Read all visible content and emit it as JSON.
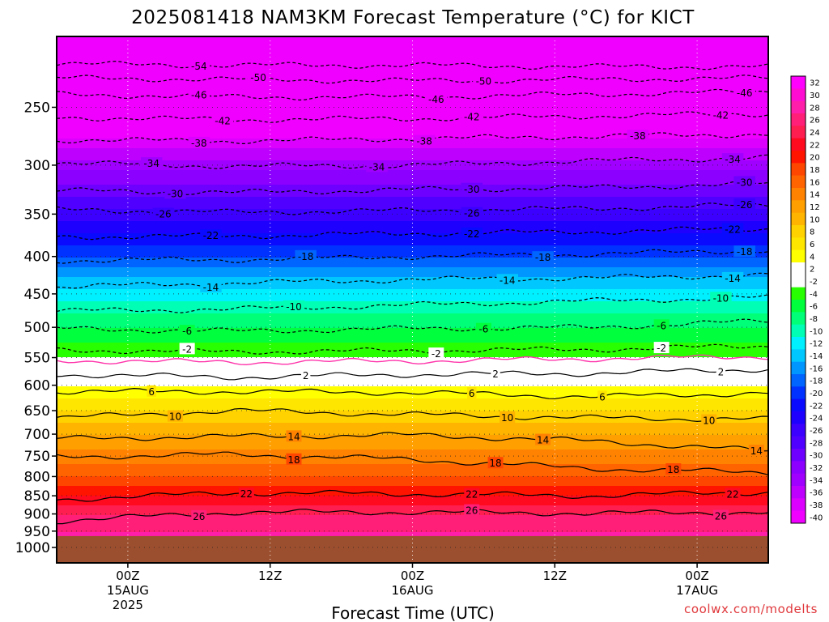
{
  "chart_data": {
    "type": "heatmap",
    "title": "2025081418 NAM3KM Forecast Temperature (°C) for KICT",
    "xlabel": "Forecast Time (UTC)",
    "ylabel": "",
    "watermark": "coolwx.com/modelts",
    "x_ticks": [
      {
        "hour": 6,
        "lines": [
          "00Z",
          "15AUG",
          "2025"
        ]
      },
      {
        "hour": 18,
        "lines": [
          "12Z"
        ]
      },
      {
        "hour": 30,
        "lines": [
          "00Z",
          "16AUG"
        ]
      },
      {
        "hour": 42,
        "lines": [
          "12Z"
        ]
      },
      {
        "hour": 54,
        "lines": [
          "00Z",
          "17AUG"
        ]
      }
    ],
    "xlim": [
      0,
      60
    ],
    "y_ticks": [
      250,
      300,
      350,
      400,
      450,
      500,
      550,
      600,
      650,
      700,
      750,
      800,
      850,
      900,
      950,
      1000
    ],
    "ylim_hPa": [
      1000,
      200
    ],
    "y_scale": "log-pressure",
    "ground_level_hPa": 965,
    "grid": "dotted",
    "colorbar": {
      "placement": "right",
      "levels": [
        "32",
        "30",
        "28",
        "26",
        "24",
        "22",
        "20",
        "18",
        "16",
        "14",
        "12",
        "10",
        "8",
        "6",
        "4",
        "2",
        "-2",
        "-4",
        "-6",
        "-8",
        "-10",
        "-12",
        "-14",
        "-16",
        "-18",
        "-20",
        "-22",
        "-24",
        "-26",
        "-28",
        "-30",
        "-32",
        "-34",
        "-36",
        "-38",
        "-40"
      ],
      "colors": [
        "#ff00ff",
        "#ff0cd2",
        "#ff1eaa",
        "#ff1e78",
        "#ff1e50",
        "#ff0a1e",
        "#ff1400",
        "#ff4600",
        "#ff6400",
        "#ff8200",
        "#ffa000",
        "#ffb400",
        "#ffd200",
        "#ffe600",
        "#ffff00",
        "#ffffff",
        "#ffffff",
        "#28ff00",
        "#00ff3c",
        "#00ff78",
        "#00ffb4",
        "#00f0ff",
        "#00c8ff",
        "#0096ff",
        "#0064ff",
        "#0032ff",
        "#0a0aff",
        "#1e00ff",
        "#3c00ff",
        "#5000ff",
        "#6e00ff",
        "#8c00ff",
        "#a000ff",
        "#be00ff",
        "#dc00ff",
        "#f000ff"
      ]
    },
    "temperature_profile": [
      {
        "p": 1000,
        "t": 30
      },
      {
        "p": 950,
        "t": 28
      },
      {
        "p": 900,
        "t": 26
      },
      {
        "p": 850,
        "t": 22
      },
      {
        "p": 800,
        "t": 18
      },
      {
        "p": 750,
        "t": 15
      },
      {
        "p": 700,
        "t": 12
      },
      {
        "p": 650,
        "t": 8
      },
      {
        "p": 600,
        "t": 4
      },
      {
        "p": 570,
        "t": 0
      },
      {
        "p": 550,
        "t": -2
      },
      {
        "p": 500,
        "t": -6
      },
      {
        "p": 450,
        "t": -11
      },
      {
        "p": 400,
        "t": -18
      },
      {
        "p": 350,
        "t": -25
      },
      {
        "p": 300,
        "t": -33
      },
      {
        "p": 250,
        "t": -44
      },
      {
        "p": 200,
        "t": -55
      }
    ],
    "contours": [
      {
        "level": -54,
        "dashed": true,
        "p": [
          218,
          219,
          219,
          220,
          220
        ],
        "labels": [
          12
        ]
      },
      {
        "level": -50,
        "dashed": true,
        "p": [
          228,
          229,
          230,
          229,
          228
        ],
        "labels": [
          17,
          36
        ]
      },
      {
        "level": -46,
        "dashed": true,
        "p": [
          240,
          242,
          242,
          240,
          238
        ],
        "labels": [
          12,
          32,
          58
        ]
      },
      {
        "level": -42,
        "dashed": true,
        "p": [
          258,
          260,
          259,
          257,
          255
        ],
        "labels": [
          14,
          35,
          56
        ]
      },
      {
        "level": -38,
        "dashed": true,
        "p": [
          277,
          278,
          276,
          274,
          272
        ],
        "labels": [
          12,
          31,
          49
        ]
      },
      {
        "level": -34,
        "dashed": true,
        "p": [
          298,
          301,
          300,
          296,
          293
        ],
        "labels": [
          8,
          27,
          57
        ]
      },
      {
        "level": -30,
        "dashed": true,
        "p": [
          325,
          327,
          324,
          322,
          318
        ],
        "labels": [
          10,
          35,
          58
        ]
      },
      {
        "level": -26,
        "dashed": true,
        "p": [
          345,
          348,
          346,
          344,
          340
        ],
        "labels": [
          9,
          35,
          58
        ]
      },
      {
        "level": -22,
        "dashed": true,
        "p": [
          376,
          375,
          372,
          370,
          366
        ],
        "labels": [
          13,
          35,
          57
        ]
      },
      {
        "level": -18,
        "dashed": true,
        "p": [
          405,
          404,
          400,
          397,
          392
        ],
        "labels": [
          21,
          41,
          58
        ]
      },
      {
        "level": -14,
        "dashed": true,
        "p": [
          440,
          435,
          430,
          428,
          424
        ],
        "labels": [
          13,
          38,
          57
        ]
      },
      {
        "level": -10,
        "dashed": true,
        "p": [
          475,
          472,
          466,
          460,
          455
        ],
        "labels": [
          20,
          56
        ]
      },
      {
        "level": -6,
        "dashed": true,
        "p": [
          502,
          506,
          502,
          500,
          490
        ],
        "labels": [
          11,
          36,
          51
        ]
      },
      {
        "level": -2,
        "dashed": true,
        "p": [
          537,
          540,
          538,
          536,
          530
        ],
        "labels": [
          11,
          32,
          51
        ]
      },
      {
        "level": 0,
        "dashed": false,
        "color": "#ff33aa",
        "p": [
          555,
          558,
          556,
          552,
          548
        ],
        "labels": []
      },
      {
        "level": 2,
        "dashed": false,
        "p": [
          580,
          585,
          580,
          578,
          570
        ],
        "labels": [
          21,
          37,
          56
        ]
      },
      {
        "level": 6,
        "dashed": false,
        "p": [
          612,
          612,
          614,
          622,
          615
        ],
        "labels": [
          8,
          35,
          46
        ]
      },
      {
        "level": 10,
        "dashed": false,
        "p": [
          665,
          650,
          658,
          665,
          668
        ],
        "labels": [
          10,
          38,
          55
        ]
      },
      {
        "level": 14,
        "dashed": false,
        "p": [
          710,
          705,
          702,
          715,
          738
        ],
        "labels": [
          20,
          41,
          59
        ]
      },
      {
        "level": 18,
        "dashed": false,
        "p": [
          752,
          746,
          758,
          780,
          790
        ],
        "labels": [
          20,
          37,
          52
        ]
      },
      {
        "level": 22,
        "dashed": false,
        "p": [
          860,
          842,
          845,
          850,
          840
        ],
        "labels": [
          16,
          35,
          57
        ]
      },
      {
        "level": 26,
        "dashed": false,
        "p": [
          920,
          895,
          895,
          898,
          895
        ],
        "labels": [
          12,
          35,
          56
        ]
      }
    ],
    "contour_x_hours": [
      0,
      15,
      30,
      45,
      60
    ]
  }
}
